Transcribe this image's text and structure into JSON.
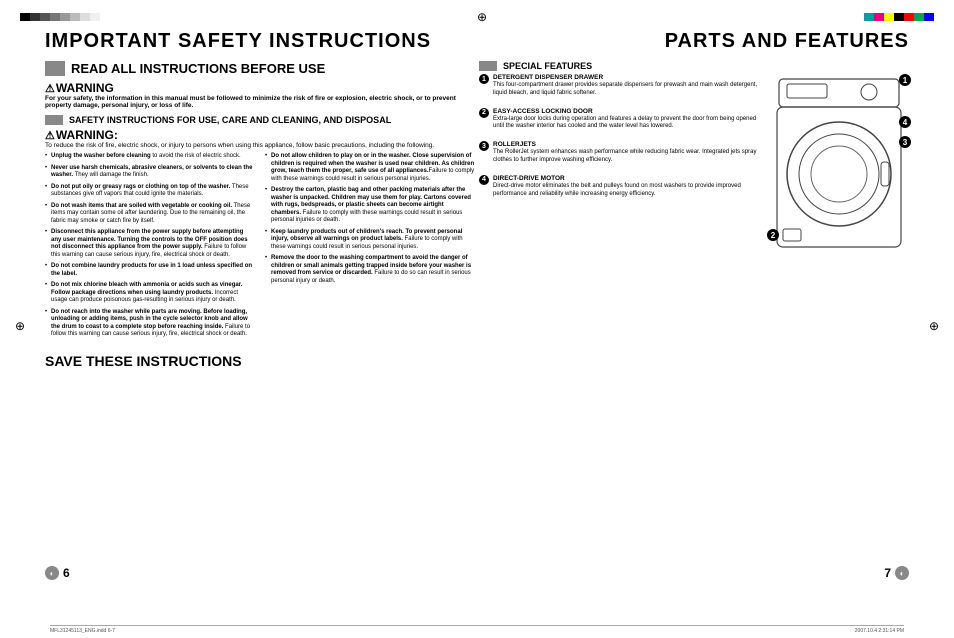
{
  "topbar": {
    "grays": [
      "#000000",
      "#333333",
      "#555555",
      "#777777",
      "#999999",
      "#bbbbbb",
      "#dddddd",
      "#f0f0f0"
    ],
    "colors": [
      "#00a0a0",
      "#e6007e",
      "#ffff00",
      "#000000",
      "#ff0000",
      "#00a651",
      "#0000ff"
    ]
  },
  "left_page": {
    "header": "IMPORTANT SAFETY INSTRUCTIONS",
    "title": "READ ALL INSTRUCTIONS BEFORE USE",
    "warning1_label": "WARNING",
    "warning1_text": "For your safety, the information in this manual must be followed to minimize the risk of fire or explosion, electric shock, or to prevent property damage, personal injury, or loss of life.",
    "section1": "SAFETY INSTRUCTIONS FOR USE, CARE AND CLEANING, AND DISPOSAL",
    "warning2_label": "WARNING:",
    "warning2_text": "To reduce the risk of fire, electric shock, or injury to persons when using this appliance, follow basic precautions, including the following.",
    "col1": [
      {
        "b": "Unplug the washer before cleaning",
        "r": " to avoid the risk of electric shock."
      },
      {
        "b": "Never use harsh chemicals, abrasive cleaners, or solvents to clean the washer.",
        "r": " They will damage the finish."
      },
      {
        "b": "Do not put oily or greasy rags or clothing on top of the washer.",
        "r": " These substances give off vapors that could ignite the materials."
      },
      {
        "b": "Do not wash items that are soiled with vegetable or cooking oil.",
        "r": " These items may contain some oil after laundering. Due to the remaining oil, the fabric may smoke or catch fire by itself."
      },
      {
        "b": "Disconnect this appliance from the power supply before attempting any user maintenance. Turning the controls to the OFF position does not disconnect this appliance from the power supply.",
        "r": " Failure to follow this warning can cause serious injury, fire, electrical shock or death."
      },
      {
        "b": "Do not combine laundry products for use in 1 load unless specified on the label.",
        "r": ""
      },
      {
        "b": "Do not mix chlorine bleach with ammonia or acids such as vinegar. Follow package directions when using laundry products.",
        "r": " Incorrect usage can produce poisonous gas-resulting in serious injury or death."
      },
      {
        "b": "Do not reach into the washer while parts are moving. Before loading, unloading or adding items, push in the cycle selector knob and allow the drum to coast to a complete stop before reaching inside.",
        "r": " Failure to follow this warning can cause serious injury, fire, electrical shock or death."
      }
    ],
    "col2": [
      {
        "b": "Do not allow children to play on or in the washer. Close supervision of children is required when the washer is used near children. As children grow, teach them the proper, safe use of all appliances.",
        "r": "Failure to comply with these warnings could result in serious personal injuries."
      },
      {
        "b": "Destroy the carton, plastic bag and other packing materials after the washer is unpacked. Children may use them for play. Cartons covered with rugs, bedspreads, or plastic sheets can become airtight chambers.",
        "r": " Failure to comply with these warnings could result in serious personal injuries or death."
      },
      {
        "b": "Keep laundry products out of children's reach. To prevent personal injury, observe all warnings on product labels.",
        "r": " Failure to comply with these warnings could result in serious personal injuries."
      },
      {
        "b": "Remove the door to the washing compartment to avoid the danger of children or small animals getting trapped inside before your washer is removed from service or discarded.",
        "r": " Failure to do so can result in serious personal injury or death."
      }
    ],
    "save": "SAVE THESE INSTRUCTIONS",
    "page_num": "6"
  },
  "right_page": {
    "header": "PARTS AND FEATURES",
    "section": "SPECIAL FEATURES",
    "features": [
      {
        "n": "1",
        "title": "DETERGENT DISPENSER DRAWER",
        "desc": "This four-compartment drawer provides separate dispensers for prewash and main wash detergent, liquid bleach, and liquid fabric softener."
      },
      {
        "n": "2",
        "title": "EASY-ACCESS LOCKING DOOR",
        "desc": "Extra-large door locks during operation and features a delay to prevent the door from being opened until the washer interior has cooled and the water level has lowered."
      },
      {
        "n": "3",
        "title": "ROLLERJETS",
        "desc": "The RollerJet system enhances wash performance while reducing fabric wear. Integrated jets spray clothes to further improve washing efficiency."
      },
      {
        "n": "4",
        "title": "DIRECT-DRIVE MOTOR",
        "desc": "Direct-drive motor eliminates the belt and pulleys found on most washers to provide improved performance and reliability while increasing energy efficiency."
      }
    ],
    "callouts": [
      "1",
      "2",
      "3",
      "4"
    ],
    "page_num": "7"
  },
  "footer": {
    "left": "MFL31245113_ENG.indd   6-7",
    "right": "2007.10.4   2:31:14 PM"
  }
}
